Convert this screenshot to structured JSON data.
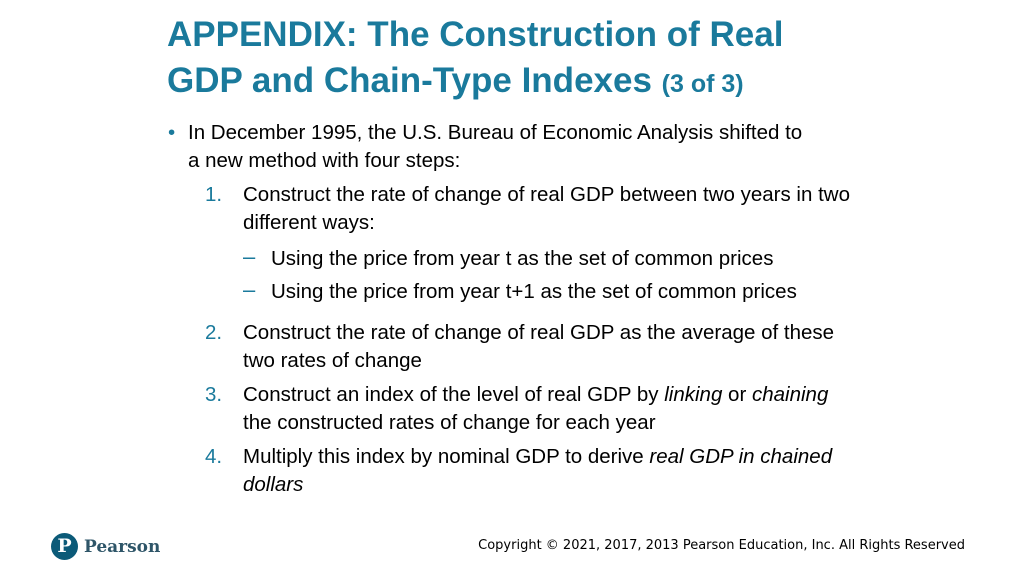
{
  "header": {
    "title": "APPENDIX: The Construction of Real GDP and Chain-Type Indexes",
    "part": "(3 of 3)"
  },
  "bullet": "In December 1995, the U.S. Bureau of Economic Analysis shifted to a new method with four steps:",
  "steps": [
    {
      "number": "1.",
      "parts": [
        {
          "text": "Construct the rate of change of real GDP between two years in two different ways:"
        }
      ],
      "subitems": [
        "Using the price from year t as the set of common prices",
        "Using the price from year t+1 as the set of common prices"
      ]
    },
    {
      "number": "2.",
      "parts": [
        {
          "text": "Construct the rate of change of real GDP as the average of these two rates of change"
        }
      ]
    },
    {
      "number": "3.",
      "parts": [
        {
          "text": "Construct an index of the level of real GDP by "
        },
        {
          "text": "linking",
          "italic": true
        },
        {
          "text": " or "
        },
        {
          "text": "chaining",
          "italic": true
        },
        {
          "text": " the constructed rates of change for each year"
        }
      ]
    },
    {
      "number": "4.",
      "parts": [
        {
          "text": "Multiply this index by nominal GDP to derive "
        },
        {
          "text": "real GDP in chained dollars",
          "italic": true
        }
      ]
    }
  ],
  "footer": {
    "logo": "Pearson",
    "copyright": "Copyright © 2021, 2017, 2013 Pearson Education, Inc. All Rights Reserved"
  }
}
